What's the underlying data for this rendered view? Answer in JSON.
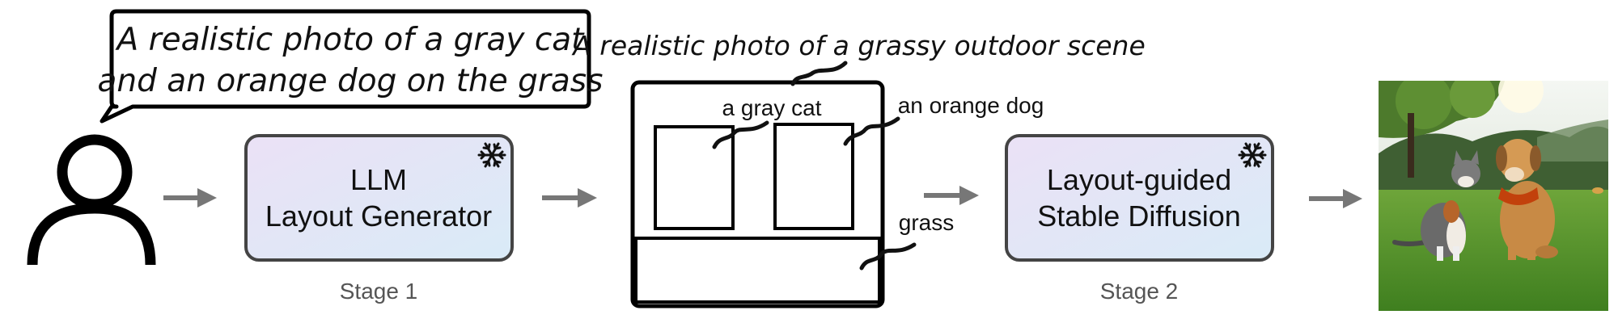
{
  "prompt": {
    "line1": "A realistic photo of a gray cat",
    "line2": "and an orange dog on the grass"
  },
  "stage1": {
    "title_line1": "LLM",
    "title_line2": "Layout Generator",
    "caption": "Stage 1",
    "frozen_icon": "snowflake-icon"
  },
  "layout": {
    "background_caption": "A realistic photo of a grassy outdoor scene",
    "labels": {
      "cat": "a gray cat",
      "dog": "an orange dog",
      "grass": "grass"
    }
  },
  "stage2": {
    "title_line1": "Layout-guided",
    "title_line2": "Stable Diffusion",
    "caption": "Stage 2",
    "frozen_icon": "snowflake-icon"
  },
  "icons": {
    "user": "user-icon",
    "arrow": "right-arrow-icon",
    "output": "generated-image"
  },
  "colors": {
    "box_gradient_start": "#ece3f6",
    "box_gradient_end": "#dbeaf7",
    "stroke": "#000000",
    "arrow": "#777777",
    "caption": "#555555"
  }
}
